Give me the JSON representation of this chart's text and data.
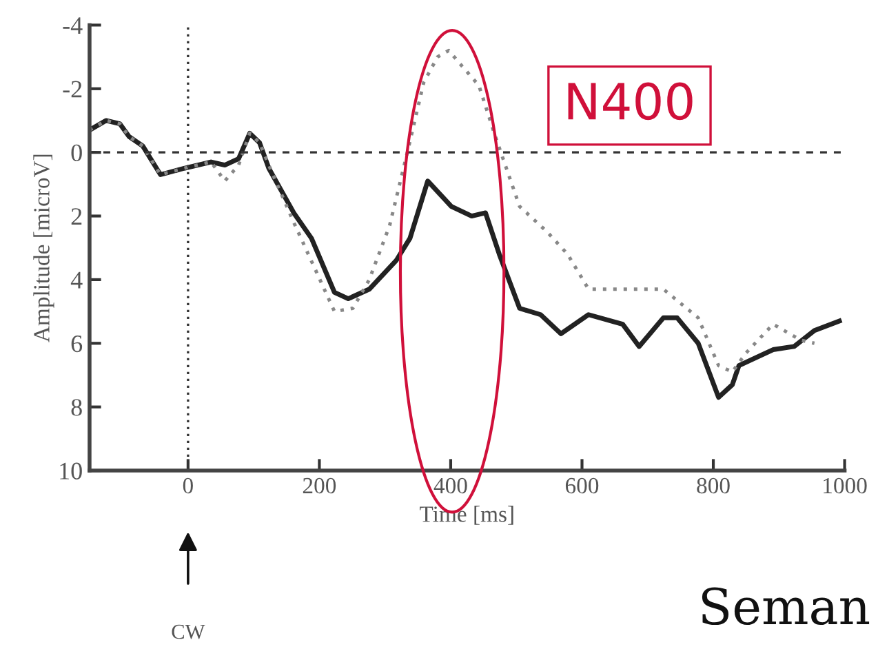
{
  "chart_data": {
    "type": "line",
    "xlabel": "Time [ms]",
    "ylabel": "Amplitude [microV]",
    "xlim": [
      -150,
      1000
    ],
    "xticks": [
      0,
      200,
      400,
      600,
      800,
      1000
    ],
    "ylim": [
      10,
      -4
    ],
    "yticks": [
      -4,
      -2,
      0,
      2,
      4,
      6,
      8,
      10
    ],
    "grid": false,
    "legend": false,
    "series": [
      {
        "color": "#222222",
        "line_style": "solid",
        "x": [
          -150,
          -125,
          -104,
          -90,
          -69,
          -42,
          -6,
          35,
          56,
          77,
          94,
          109,
          123,
          161,
          188,
          223,
          244,
          276,
          317,
          338,
          365,
          401,
          432,
          453,
          474,
          505,
          537,
          568,
          610,
          662,
          687,
          724,
          745,
          777,
          808,
          829,
          839,
          891,
          923,
          954,
          992
        ],
        "values": [
          -0.7,
          -1.0,
          -0.9,
          -0.5,
          -0.2,
          0.7,
          0.5,
          0.3,
          0.4,
          0.2,
          -0.6,
          -0.3,
          0.5,
          1.9,
          2.7,
          4.4,
          4.6,
          4.3,
          3.4,
          2.7,
          0.9,
          1.7,
          2.0,
          1.9,
          3.2,
          4.9,
          5.1,
          5.7,
          5.1,
          5.4,
          6.1,
          5.2,
          5.2,
          6.0,
          7.7,
          7.3,
          6.7,
          6.2,
          6.1,
          5.6,
          5.3
        ]
      },
      {
        "color": "#888888",
        "line_style": "dotted",
        "x": [
          -150,
          -125,
          -104,
          -90,
          -69,
          -42,
          -6,
          35,
          56,
          77,
          94,
          109,
          123,
          161,
          192,
          223,
          251,
          276,
          307,
          334,
          359,
          380,
          397,
          422,
          443,
          468,
          505,
          547,
          578,
          610,
          651,
          724,
          777,
          808,
          829,
          850,
          891,
          933,
          954
        ],
        "values": [
          -0.7,
          -1.0,
          -0.9,
          -0.5,
          -0.2,
          0.7,
          0.5,
          0.3,
          0.9,
          0.4,
          -0.6,
          -0.3,
          0.4,
          2.2,
          3.6,
          5.0,
          4.9,
          4.0,
          2.3,
          0.0,
          -2.2,
          -3.0,
          -3.2,
          -2.6,
          -2.1,
          -0.5,
          1.7,
          2.5,
          3.2,
          4.3,
          4.3,
          4.3,
          5.2,
          6.7,
          6.9,
          6.3,
          5.4,
          5.9,
          6.0
        ]
      }
    ],
    "ref_lines": [
      {
        "axis": "x",
        "value": 0,
        "line_style": "dotted",
        "color": "#333333"
      },
      {
        "axis": "y",
        "value": 0,
        "line_style": "dashed",
        "color": "#333333"
      }
    ],
    "annotations": [
      "N400",
      "CW",
      "Seman"
    ]
  }
}
